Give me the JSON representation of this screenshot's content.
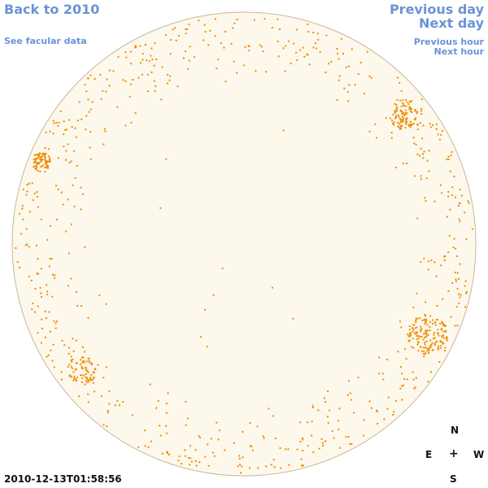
{
  "nav": {
    "back": "Back to 2010",
    "facular": "See facular data",
    "previous_day": "Previous day",
    "next_day": "Next day",
    "previous_hour": "Previous hour",
    "next_hour": "Next hour"
  },
  "timestamp": "2010-12-13T01:58:56",
  "compass": {
    "north": "N",
    "east": "E",
    "west": "W",
    "south": "S",
    "center": "+"
  },
  "colors": {
    "disk": "#fdf8ec",
    "limb": "#c7b89a",
    "spots": "#f08c00",
    "link": "#6b93d6"
  }
}
